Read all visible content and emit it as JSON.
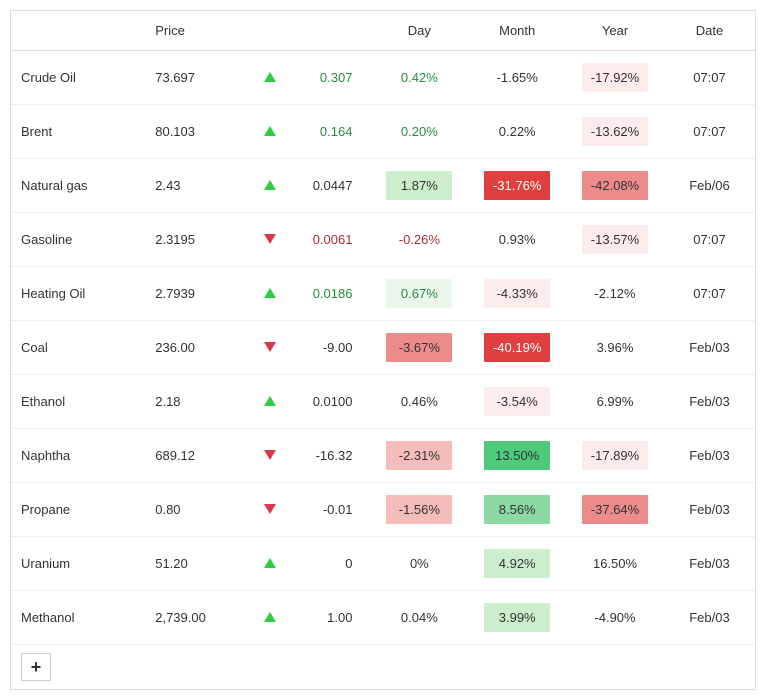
{
  "columns": {
    "name": "",
    "price": "Price",
    "arrow": "",
    "change": "",
    "day": "Day",
    "month": "Month",
    "year": "Year",
    "date": "Date"
  },
  "colors": {
    "up_arrow": "#2ecc40",
    "down_arrow": "#d9394e",
    "text_green": "#2b8a3e",
    "text_red": "#b02a37"
  },
  "heat_scale": {
    "green_strong": "#4fc97a",
    "green_mid": "#8dd9a3",
    "green_light": "#cdeecd",
    "green_faint": "#eaf7ea",
    "red_strong": "#e03f3f",
    "red_mid": "#ed8b8b",
    "red_light": "#f5bcbc",
    "red_faint": "#fdecec",
    "neutral": "transparent"
  },
  "rows": [
    {
      "name": "Crude Oil",
      "price": "73.697",
      "dir": "up",
      "change": "0.307",
      "change_color": "green",
      "day": {
        "v": "0.42%",
        "bg": "neutral",
        "tc": "green"
      },
      "month": {
        "v": "-1.65%",
        "bg": "neutral",
        "tc": "default"
      },
      "year": {
        "v": "-17.92%",
        "bg": "red_faint",
        "tc": "default"
      },
      "date": "07:07"
    },
    {
      "name": "Brent",
      "price": "80.103",
      "dir": "up",
      "change": "0.164",
      "change_color": "green",
      "day": {
        "v": "0.20%",
        "bg": "neutral",
        "tc": "green"
      },
      "month": {
        "v": "0.22%",
        "bg": "neutral",
        "tc": "default"
      },
      "year": {
        "v": "-13.62%",
        "bg": "red_faint",
        "tc": "default"
      },
      "date": "07:07"
    },
    {
      "name": "Natural gas",
      "price": "2.43",
      "dir": "up",
      "change": "0.0447",
      "change_color": "default",
      "day": {
        "v": "1.87%",
        "bg": "green_light",
        "tc": "default"
      },
      "month": {
        "v": "-31.76%",
        "bg": "red_strong",
        "tc": "white"
      },
      "year": {
        "v": "-42.08%",
        "bg": "red_mid",
        "tc": "default"
      },
      "date": "Feb/06"
    },
    {
      "name": "Gasoline",
      "price": "2.3195",
      "dir": "down",
      "change": "0.0061",
      "change_color": "red",
      "day": {
        "v": "-0.26%",
        "bg": "neutral",
        "tc": "red"
      },
      "month": {
        "v": "0.93%",
        "bg": "neutral",
        "tc": "default"
      },
      "year": {
        "v": "-13.57%",
        "bg": "red_faint",
        "tc": "default"
      },
      "date": "07:07"
    },
    {
      "name": "Heating Oil",
      "price": "2.7939",
      "dir": "up",
      "change": "0.0186",
      "change_color": "green",
      "day": {
        "v": "0.67%",
        "bg": "green_faint",
        "tc": "green"
      },
      "month": {
        "v": "-4.33%",
        "bg": "red_faint",
        "tc": "default"
      },
      "year": {
        "v": "-2.12%",
        "bg": "neutral",
        "tc": "default"
      },
      "date": "07:07"
    },
    {
      "name": "Coal",
      "price": "236.00",
      "dir": "down",
      "change": "-9.00",
      "change_color": "default",
      "day": {
        "v": "-3.67%",
        "bg": "red_mid",
        "tc": "default"
      },
      "month": {
        "v": "-40.19%",
        "bg": "red_strong",
        "tc": "white"
      },
      "year": {
        "v": "3.96%",
        "bg": "neutral",
        "tc": "default"
      },
      "date": "Feb/03"
    },
    {
      "name": "Ethanol",
      "price": "2.18",
      "dir": "up",
      "change": "0.0100",
      "change_color": "default",
      "day": {
        "v": "0.46%",
        "bg": "neutral",
        "tc": "default"
      },
      "month": {
        "v": "-3.54%",
        "bg": "red_faint",
        "tc": "default"
      },
      "year": {
        "v": "6.99%",
        "bg": "neutral",
        "tc": "default"
      },
      "date": "Feb/03"
    },
    {
      "name": "Naphtha",
      "price": "689.12",
      "dir": "down",
      "change": "-16.32",
      "change_color": "default",
      "day": {
        "v": "-2.31%",
        "bg": "red_light",
        "tc": "default"
      },
      "month": {
        "v": "13.50%",
        "bg": "green_strong",
        "tc": "default"
      },
      "year": {
        "v": "-17.89%",
        "bg": "red_faint",
        "tc": "default"
      },
      "date": "Feb/03"
    },
    {
      "name": "Propane",
      "price": "0.80",
      "dir": "down",
      "change": "-0.01",
      "change_color": "default",
      "day": {
        "v": "-1.56%",
        "bg": "red_light",
        "tc": "default"
      },
      "month": {
        "v": "8.56%",
        "bg": "green_mid",
        "tc": "default"
      },
      "year": {
        "v": "-37.64%",
        "bg": "red_mid",
        "tc": "default"
      },
      "date": "Feb/03"
    },
    {
      "name": "Uranium",
      "price": "51.20",
      "dir": "up",
      "change": "0",
      "change_color": "default",
      "day": {
        "v": "0%",
        "bg": "neutral",
        "tc": "default"
      },
      "month": {
        "v": "4.92%",
        "bg": "green_light",
        "tc": "default"
      },
      "year": {
        "v": "16.50%",
        "bg": "neutral",
        "tc": "default"
      },
      "date": "Feb/03"
    },
    {
      "name": "Methanol",
      "price": "2,739.00",
      "dir": "up",
      "change": "1.00",
      "change_color": "default",
      "day": {
        "v": "0.04%",
        "bg": "neutral",
        "tc": "default"
      },
      "month": {
        "v": "3.99%",
        "bg": "green_light",
        "tc": "default"
      },
      "year": {
        "v": "-4.90%",
        "bg": "neutral",
        "tc": "default"
      },
      "date": "Feb/03"
    }
  ],
  "plus_label": "+"
}
